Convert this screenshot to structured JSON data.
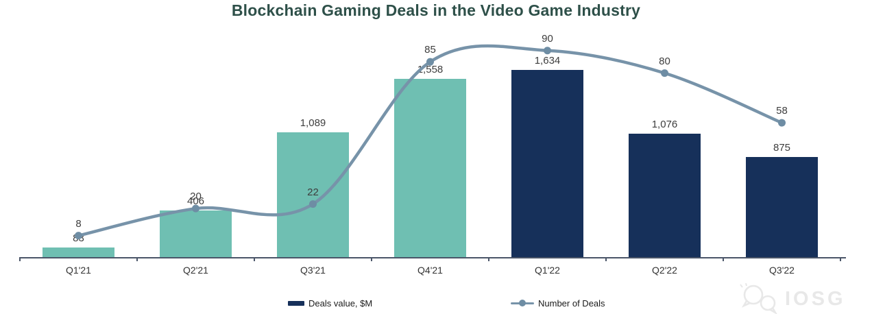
{
  "title": "Blockchain Gaming Deals in the Video Game Industry",
  "legend": {
    "bars_label": "Deals value, $M",
    "line_label": "Number of Deals"
  },
  "watermark": {
    "text": "IOSG"
  },
  "colors": {
    "title": "#2E5049",
    "bar_2021": "#6FBFB2",
    "bar_2022": "#16305A",
    "line": "#7793A9",
    "marker": "#6E8DA4",
    "axis": "#4A5568",
    "value_label": "#3D3D3D",
    "category_label": "#333333",
    "legend_text": "#1A1A1A",
    "watermark": "#E8E8E8"
  },
  "chart_data": {
    "type": "bar",
    "combo": "bar+line",
    "title": "Blockchain Gaming Deals in the Video Game Industry",
    "xlabel": "",
    "ylabel": "",
    "categories": [
      "Q1'21",
      "Q2'21",
      "Q3'21",
      "Q4'21",
      "Q1'22",
      "Q2'22",
      "Q3'22"
    ],
    "series": [
      {
        "name": "Deals value, $M",
        "type": "bar",
        "values": [
          83,
          406,
          1089,
          1558,
          1634,
          1076,
          875
        ],
        "value_labels": [
          "83",
          "406",
          "1,089",
          "1,558",
          "1,634",
          "1,076",
          "875"
        ],
        "bar_colors": [
          "#6FBFB2",
          "#6FBFB2",
          "#6FBFB2",
          "#6FBFB2",
          "#16305A",
          "#16305A",
          "#16305A"
        ]
      },
      {
        "name": "Number of Deals",
        "type": "line",
        "values": [
          8,
          20,
          22,
          85,
          90,
          80,
          58
        ],
        "value_labels": [
          "8",
          "20",
          "22",
          "85",
          "90",
          "80",
          "58"
        ]
      }
    ],
    "bar_axis_range": [
      0,
      1700
    ],
    "line_axis_range": [
      0,
      100
    ],
    "grid": false,
    "data_labels": true,
    "legend_position": "bottom"
  }
}
